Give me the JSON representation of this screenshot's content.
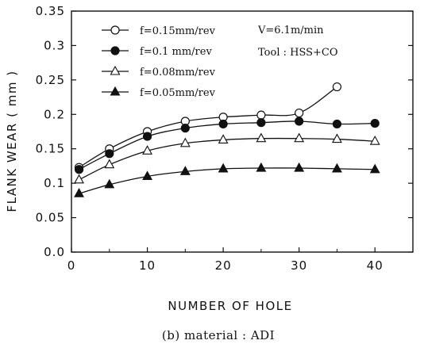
{
  "chart_data": {
    "type": "line",
    "xlabel": "NUMBER OF HOLE",
    "ylabel": "FLANK WEAR ( mm )",
    "caption": "(b) material : ADI",
    "xlim": [
      0,
      45
    ],
    "ylim": [
      0,
      0.35
    ],
    "xticks": [
      0,
      10,
      20,
      30,
      40
    ],
    "yticks": [
      0.0,
      0.05,
      0.1,
      0.15,
      0.2,
      0.25,
      0.3,
      0.35
    ],
    "xtick_labels": [
      "0",
      "10",
      "20",
      "30",
      "40"
    ],
    "ytick_labels": [
      "0.0",
      "0.05",
      "0.1",
      "0.15",
      "0.2",
      "0.25",
      "0.3",
      "0.35"
    ],
    "grid": false,
    "legend_position": "top-left",
    "annotations": [
      "V=6.1m/min",
      "Tool : HSS+CO"
    ],
    "series": [
      {
        "name": "f=0.15mm/rev",
        "marker": "open-circle",
        "x": [
          1,
          5,
          10,
          15,
          20,
          25,
          30,
          35
        ],
        "y": [
          0.123,
          0.15,
          0.175,
          0.19,
          0.196,
          0.199,
          0.202,
          0.24
        ]
      },
      {
        "name": "f=0.1 mm/rev",
        "marker": "filled-circle",
        "x": [
          1,
          5,
          10,
          15,
          20,
          25,
          30,
          35,
          40
        ],
        "y": [
          0.12,
          0.143,
          0.168,
          0.18,
          0.186,
          0.188,
          0.19,
          0.186,
          0.187
        ]
      },
      {
        "name": "f=0.08mm/rev",
        "marker": "open-triangle",
        "x": [
          1,
          5,
          10,
          15,
          20,
          25,
          30,
          35,
          40
        ],
        "y": [
          0.105,
          0.127,
          0.147,
          0.158,
          0.163,
          0.165,
          0.165,
          0.164,
          0.161
        ]
      },
      {
        "name": "f=0.05mm/rev",
        "marker": "filled-triangle",
        "x": [
          1,
          5,
          10,
          15,
          20,
          25,
          30,
          35,
          40
        ],
        "y": [
          0.085,
          0.098,
          0.11,
          0.117,
          0.121,
          0.122,
          0.122,
          0.121,
          0.12
        ]
      }
    ]
  }
}
